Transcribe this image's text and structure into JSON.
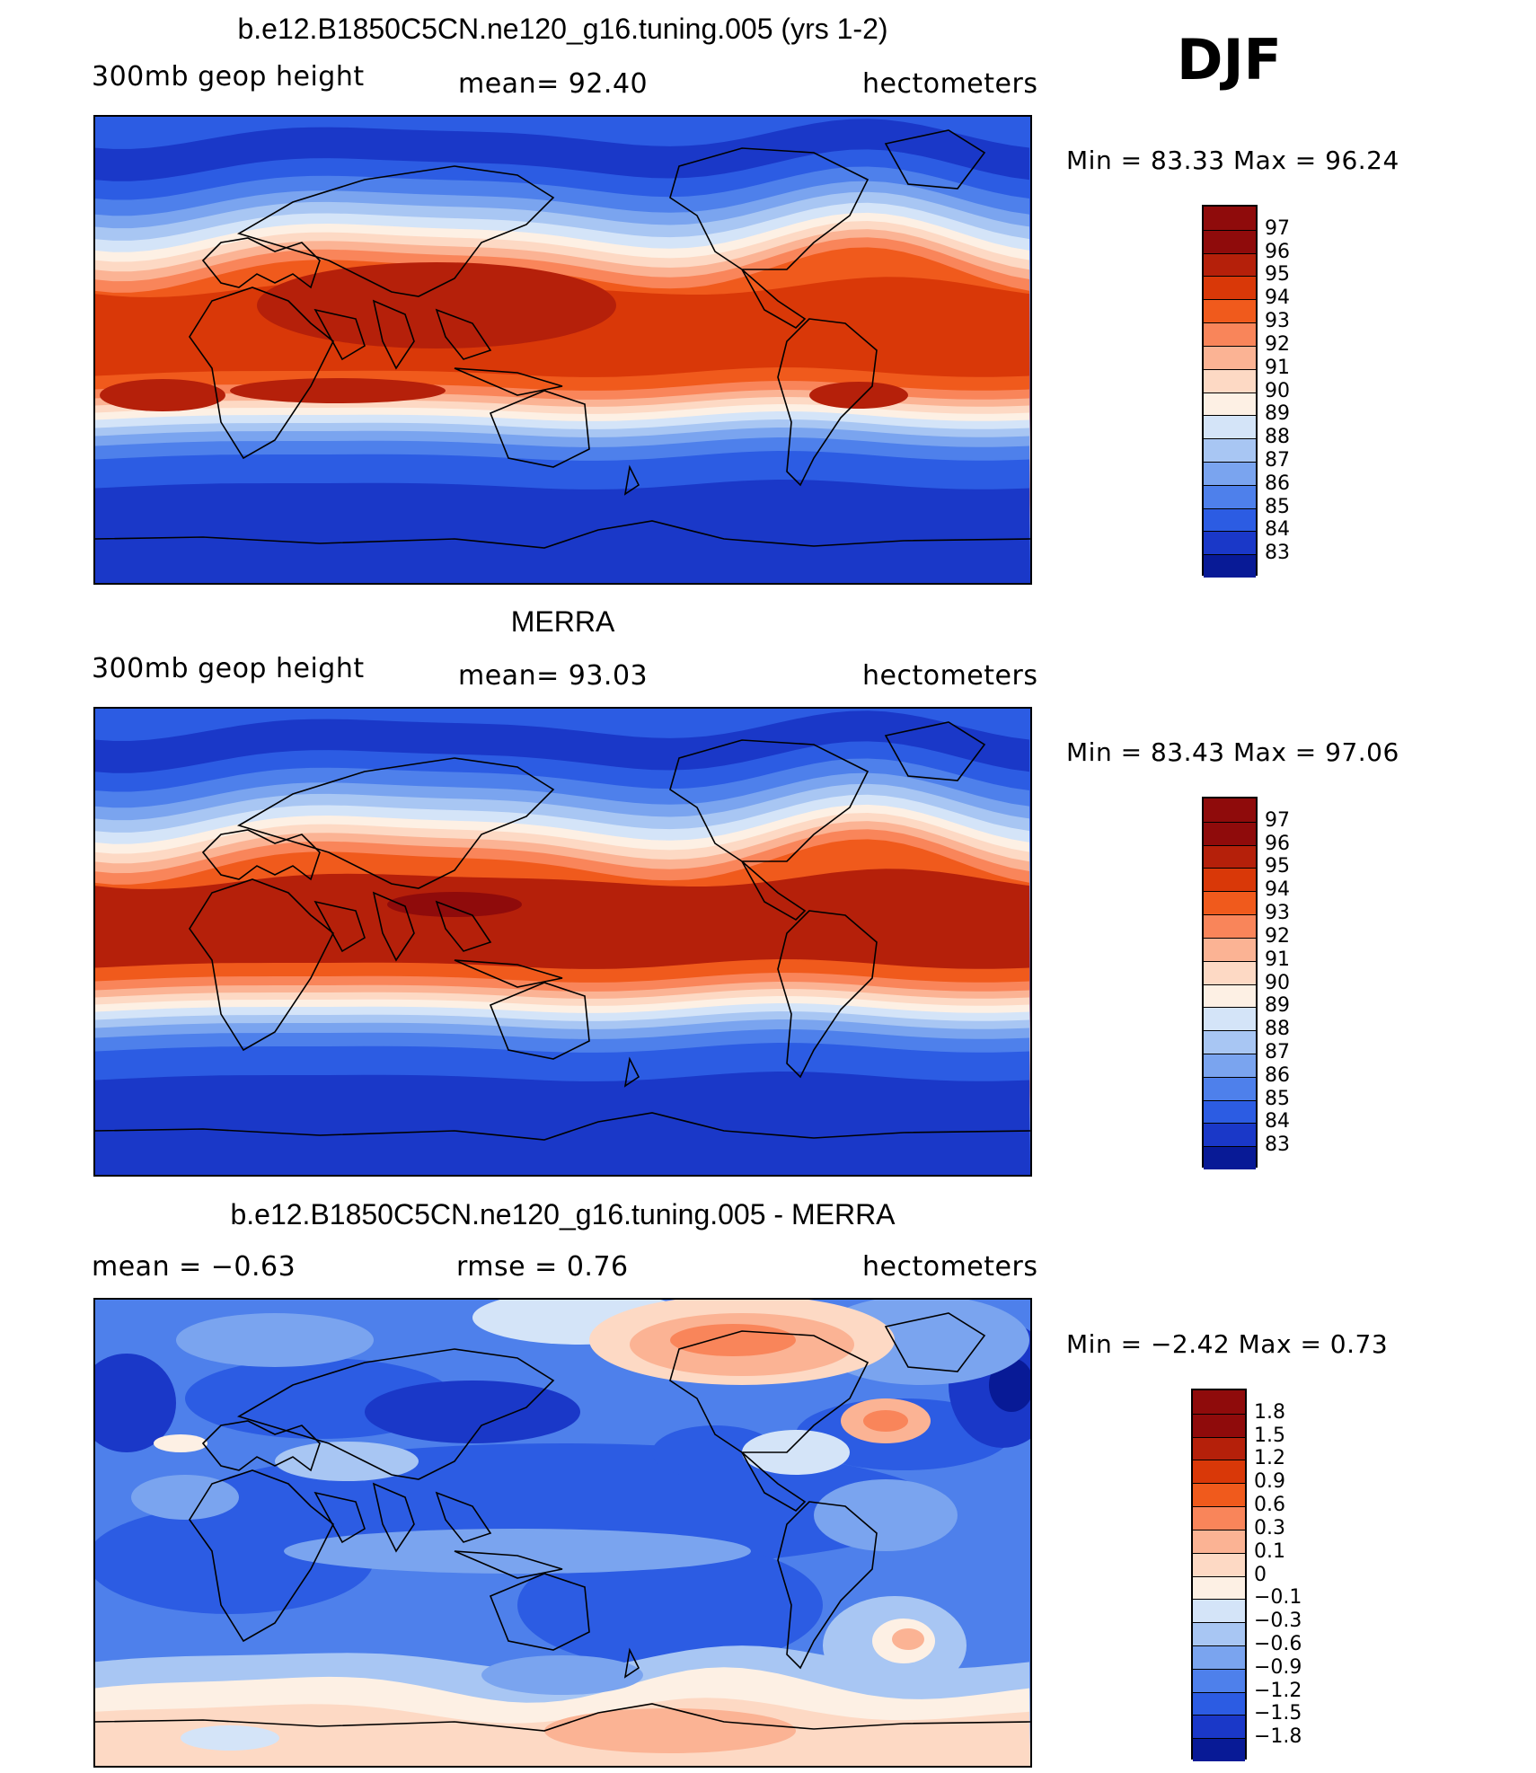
{
  "season": "DJF",
  "panels": [
    {
      "title": "b.e12.B1850C5CN.ne120_g16.tuning.005 (yrs 1-2)",
      "left_label": "300mb  geop  height",
      "center_label": "mean=   92.40",
      "right_label": "hectometers",
      "stats": "Min  =    83.33  Max  =    96.24",
      "levels": [
        "97",
        "96",
        "95",
        "94",
        "93",
        "92",
        "91",
        "90",
        "89",
        "88",
        "87",
        "86",
        "85",
        "84",
        "83"
      ],
      "colors": [
        "#8f0b0b",
        "#b5200a",
        "#d93808",
        "#f05a1c",
        "#f9855a",
        "#fbb394",
        "#fdd9c4",
        "#fdf0e4",
        "#d4e4f8",
        "#a8c6f3",
        "#7aa4ef",
        "#4e80eb",
        "#2c5ce3",
        "#1a38c8",
        "#081a96"
      ],
      "field": {
        "tropic": "#d93808",
        "deep": "#b5200a",
        "deep_spots": true
      }
    },
    {
      "title": "MERRA",
      "left_label": "300mb  geop  height",
      "center_label": "mean=   93.03",
      "right_label": "hectometers",
      "stats": "Min  =    83.43  Max  =    97.06",
      "levels": [
        "97",
        "96",
        "95",
        "94",
        "93",
        "92",
        "91",
        "90",
        "89",
        "88",
        "87",
        "86",
        "85",
        "84",
        "83"
      ],
      "colors": [
        "#8f0b0b",
        "#b5200a",
        "#d93808",
        "#f05a1c",
        "#f9855a",
        "#fbb394",
        "#fdd9c4",
        "#fdf0e4",
        "#d4e4f8",
        "#a8c6f3",
        "#7aa4ef",
        "#4e80eb",
        "#2c5ce3",
        "#1a38c8",
        "#081a96"
      ],
      "field": {
        "tropic": "#b5200a",
        "deep": "#8f0b0b",
        "deep_spots": false
      }
    },
    {
      "title": "b.e12.B1850C5CN.ne120_g16.tuning.005 - MERRA",
      "left_label": "mean  =    −0.63",
      "center_label": "rmse  =     0.76",
      "right_label": "hectometers",
      "stats": "Min  =    −2.42  Max  =       0.73",
      "levels": [
        "1.8",
        "1.5",
        "1.2",
        "0.9",
        "0.6",
        "0.3",
        "0.1",
        "0",
        "−0.1",
        "−0.3",
        "−0.6",
        "−0.9",
        "−1.2",
        "−1.5",
        "−1.8"
      ],
      "colors": [
        "#8f0b0b",
        "#b5200a",
        "#d93808",
        "#f05a1c",
        "#f9855a",
        "#fbb394",
        "#fdd9c4",
        "#fdf0e4",
        "#d4e4f8",
        "#a8c6f3",
        "#7aa4ef",
        "#4e80eb",
        "#2c5ce3",
        "#1a38c8",
        "#081a96"
      ]
    }
  ]
}
